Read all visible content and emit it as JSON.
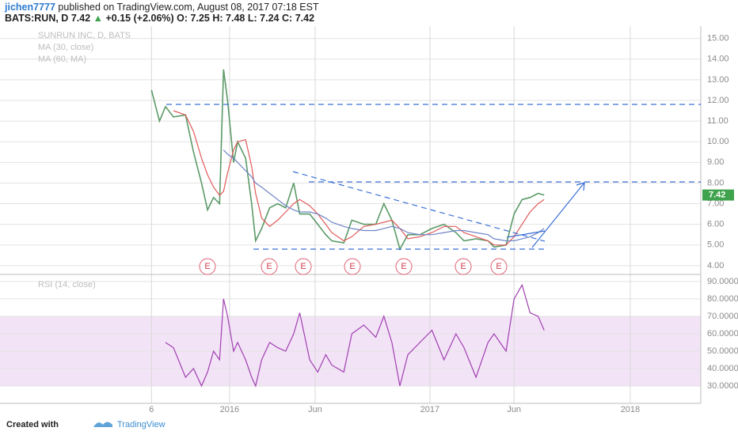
{
  "header": {
    "author": "jichen7777",
    "published": "published on TradingView.com, August 08, 2017 07:18 EST",
    "symbol": "BATS:RUN, D",
    "last": 7.42,
    "change": "+0.15 (+2.06%)",
    "ohlc": [
      {
        "label": "O:",
        "value": 7.25
      },
      {
        "label": "H:",
        "value": 7.48
      },
      {
        "label": "L:",
        "value": 7.24
      },
      {
        "label": "C:",
        "value": 7.42
      }
    ]
  },
  "earnings": [
    "E",
    "E",
    "E",
    "E",
    "E",
    "E",
    "E"
  ],
  "footer": {
    "created": "Created with",
    "brand": "TradingView"
  },
  "chart_data": [
    {
      "type": "line",
      "x": [
        2015.61,
        2015.65,
        2015.68,
        2015.72,
        2015.78,
        2015.82,
        2015.86,
        2015.89,
        2015.92,
        2015.95,
        2015.97,
        2015.99,
        2016.02,
        2016.04,
        2016.08,
        2016.11,
        2016.13,
        2016.16,
        2016.2,
        2016.24,
        2016.28,
        2016.32,
        2016.35,
        2016.4,
        2016.44,
        2016.48,
        2016.51,
        2016.57,
        2016.61,
        2016.67,
        2016.73,
        2016.77,
        2016.81,
        2016.85,
        2016.89,
        2016.95,
        2017.01,
        2017.07,
        2017.13,
        2017.17,
        2017.23,
        2017.29,
        2017.32,
        2017.38,
        2017.42,
        2017.46,
        2017.5,
        2017.54,
        2017.57
      ],
      "series": [
        {
          "name": "SUNRUN INC, D, BATS",
          "color": "#5b9a68",
          "values": [
            12.5,
            11,
            11.7,
            11.2,
            11.3,
            9.5,
            8,
            6.7,
            7.3,
            7.0,
            13.5,
            12,
            9,
            10,
            9.2,
            7,
            5.2,
            5.8,
            6.8,
            7.0,
            6.8,
            8,
            6.5,
            6.5,
            6.0,
            5.5,
            5.2,
            5.1,
            6.2,
            6,
            6,
            7,
            6.2,
            4.8,
            5.5,
            5.5,
            5.8,
            6,
            5.6,
            5.2,
            5.3,
            5.2,
            4.9,
            5.0,
            6.5,
            7.2,
            7.3,
            7.5,
            7.42
          ]
        },
        {
          "name": "MA (30, close)",
          "color": "#e05a5a",
          "values": [
            null,
            null,
            null,
            11.5,
            11.3,
            10.5,
            9.2,
            8.4,
            7.8,
            7.4,
            7.6,
            8.5,
            9.6,
            10.0,
            10.1,
            8.8,
            7.5,
            6.3,
            5.9,
            6.2,
            6.6,
            7.0,
            7.2,
            6.9,
            6.5,
            6.0,
            5.6,
            5.2,
            5.4,
            5.9,
            6.0,
            6.1,
            6.2,
            5.8,
            5.3,
            5.4,
            5.6,
            5.9,
            5.9,
            5.6,
            5.4,
            5.2,
            5.0,
            5.0,
            5.4,
            6.0,
            6.6,
            7.0,
            7.2
          ]
        },
        {
          "name": "MA (60, MA)",
          "color": "#6f86c8",
          "values": [
            null,
            null,
            null,
            null,
            null,
            null,
            null,
            null,
            null,
            null,
            9.6,
            9.4,
            9.2,
            9.0,
            8.6,
            8.3,
            8.0,
            7.8,
            7.5,
            7.2,
            6.9,
            6.7,
            6.6,
            6.6,
            6.5,
            6.3,
            6.1,
            5.9,
            5.8,
            5.7,
            5.7,
            5.8,
            5.9,
            5.8,
            5.6,
            5.5,
            5.5,
            5.6,
            5.7,
            5.7,
            5.6,
            5.5,
            5.3,
            5.2,
            5.2,
            5.3,
            5.4,
            5.6,
            5.8
          ]
        }
      ],
      "last_price": 7.42,
      "xlim": [
        2014.854,
        2018.352
      ],
      "xticks": [
        {
          "value": 2015.61,
          "label": "6"
        },
        2016,
        {
          "value": 2016.427,
          "label": "Jun"
        },
        2017,
        {
          "value": 2017.42,
          "label": "Jun"
        },
        2018
      ],
      "ylim": [
        3.65,
        15.6
      ],
      "yticks": [
        {
          "value": 4,
          "label": "4.00"
        },
        {
          "value": 5,
          "label": "5.00"
        },
        {
          "value": 6,
          "label": "6.00"
        },
        {
          "value": 7,
          "label": "7.00"
        },
        {
          "value": 8,
          "label": "8.00"
        },
        {
          "value": 9,
          "label": "9.00"
        },
        {
          "value": 10,
          "label": "10.00"
        },
        {
          "value": 11,
          "label": "11.00"
        },
        {
          "value": 12,
          "label": "12.00"
        },
        {
          "value": 13,
          "label": "13.00"
        },
        {
          "value": 14,
          "label": "14.00"
        },
        {
          "value": 15,
          "label": "15.00"
        }
      ],
      "grid": true
    },
    {
      "type": "line",
      "series": [
        {
          "name": "RSI (14, close)",
          "color": "#a040b0",
          "values": [
            null,
            null,
            55,
            52,
            35,
            40,
            30,
            38,
            50,
            45,
            80,
            70,
            50,
            55,
            45,
            35,
            30,
            45,
            55,
            52,
            50,
            60,
            72,
            45,
            38,
            48,
            42,
            38,
            60,
            65,
            58,
            70,
            55,
            30,
            48,
            55,
            62,
            45,
            60,
            52,
            35,
            55,
            60,
            50,
            80,
            88,
            72,
            70,
            62
          ]
        }
      ],
      "band": [
        30,
        70
      ],
      "ylim": [
        20,
        93.6
      ],
      "yticks": [
        {
          "value": 30,
          "label": "30.0000"
        },
        {
          "value": 40,
          "label": "40.0000"
        },
        {
          "value": 50,
          "label": "50.0000"
        },
        {
          "value": 60,
          "label": "60.0000"
        },
        {
          "value": 70,
          "label": "70.0000"
        },
        {
          "value": 80,
          "label": "80.0000"
        },
        {
          "value": 90,
          "label": "90.0000"
        }
      ],
      "grid": true
    }
  ]
}
